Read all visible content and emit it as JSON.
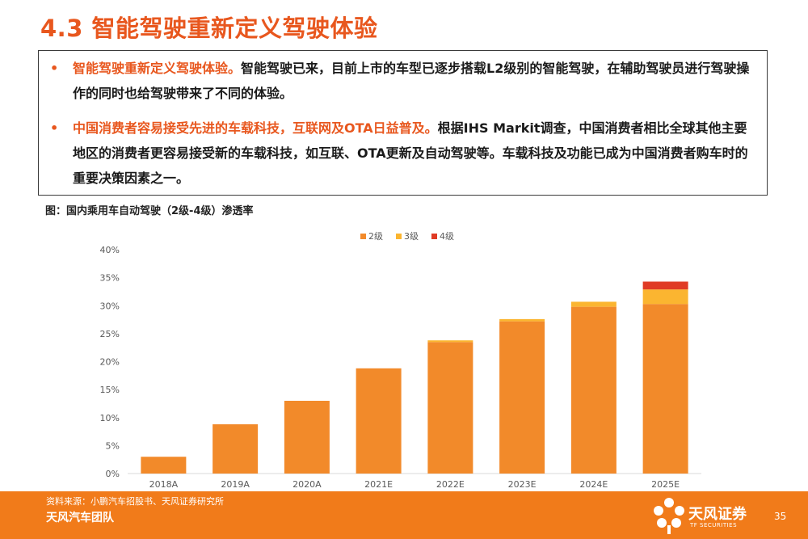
{
  "title": "4.3 智能驾驶重新定义驾驶体验",
  "bullets": [
    {
      "dot": "•",
      "highlight": "智能驾驶重新定义驾驶体验。",
      "text": "智能驾驶已来，目前上市的车型已逐步搭载L2级别的智能驾驶，在辅助驾驶员进行驾驶操作的同时也给驾驶带来了不同的体验。"
    },
    {
      "dot": "•",
      "highlight": "中国消费者容易接受先进的车载科技，互联网及OTA日益普及。",
      "text": "根据IHS Markit调查，中国消费者相比全球其他主要地区的消费者更容易接受新的车载科技，如互联、OTA更新及自动驾驶等。车载科技及功能已成为中国消费者购车时的重要决策因素之一。"
    }
  ],
  "caption": "图：国内乘用车自动驾驶（2级-4级）渗透率",
  "chart_data": {
    "type": "bar",
    "stacked": true,
    "categories": [
      "2018A",
      "2019A",
      "2020A",
      "2021E",
      "2022E",
      "2023E",
      "2024E",
      "2025E"
    ],
    "series": [
      {
        "name": "2级",
        "color": "#f28a2a",
        "values": [
          3.0,
          8.8,
          13.0,
          18.8,
          23.5,
          27.2,
          29.8,
          30.3
        ]
      },
      {
        "name": "3级",
        "color": "#fbb530",
        "values": [
          0,
          0,
          0,
          0,
          0.3,
          0.4,
          0.9,
          2.6
        ]
      },
      {
        "name": "4级",
        "color": "#e03b25",
        "values": [
          0,
          0,
          0,
          0,
          0,
          0,
          0,
          1.4
        ]
      }
    ],
    "yticks": [
      "0%",
      "5%",
      "10%",
      "15%",
      "20%",
      "25%",
      "30%",
      "35%",
      "40%"
    ],
    "ylim": [
      0,
      40
    ],
    "legend_position": "top",
    "grid": false
  },
  "footer": {
    "source": "资料来源：小鹏汽车招股书、天风证券研究所",
    "team": "天风汽车团队",
    "brand": "天风证券",
    "brand_en": "TF SECURITIES",
    "page": "35"
  }
}
